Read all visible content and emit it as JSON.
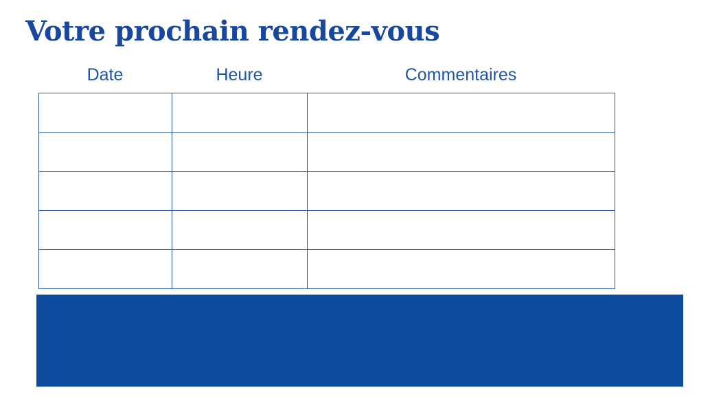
{
  "page": {
    "title": "Votre prochain rendez-vous",
    "background": "#ffffff"
  },
  "colors": {
    "title_text": "#17479e",
    "column_header_text": "#1d55a8",
    "table_border": "#2b57a2",
    "banner_fill": "#0d4c9c"
  },
  "table": {
    "columns": [
      {
        "label": "Date"
      },
      {
        "label": "Heure"
      },
      {
        "label": "Commentaires"
      }
    ],
    "rows": [
      {
        "date": "",
        "heure": "",
        "commentaires": ""
      },
      {
        "date": "",
        "heure": "",
        "commentaires": ""
      },
      {
        "date": "",
        "heure": "",
        "commentaires": ""
      },
      {
        "date": "",
        "heure": "",
        "commentaires": ""
      },
      {
        "date": "",
        "heure": "",
        "commentaires": ""
      }
    ]
  },
  "banner": {
    "text": ""
  }
}
